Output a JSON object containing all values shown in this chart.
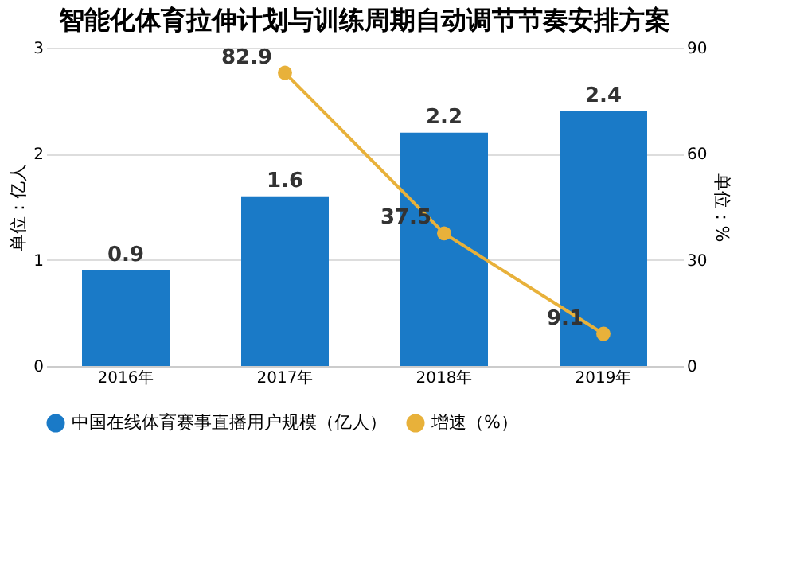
{
  "chart_data": {
    "type": "bar",
    "title": "智能化体育拉伸计划与训练周期自动调节节奏安排方案",
    "categories": [
      "2016年",
      "2017年",
      "2018年",
      "2019年"
    ],
    "series": [
      {
        "name": "中国在线体育赛事直播用户规模（亿人）",
        "color": "#1a7ac7",
        "values": [
          0.9,
          1.6,
          2.2,
          2.4
        ]
      },
      {
        "name": "增速（%）",
        "color": "#e8b13a",
        "type": "line",
        "axis": "y2",
        "values": [
          null,
          82.9,
          37.5,
          9.1
        ]
      }
    ],
    "ylabel": "单位：亿人",
    "y2label": "单位：%",
    "ylim": [
      0,
      3
    ],
    "yticks": [
      0,
      1,
      2,
      3
    ],
    "y2lim": [
      0,
      90
    ],
    "y2ticks": [
      0,
      30,
      60,
      90
    ],
    "data_labels": true,
    "grid": "y",
    "legend": "bottom",
    "marker": "circle"
  }
}
